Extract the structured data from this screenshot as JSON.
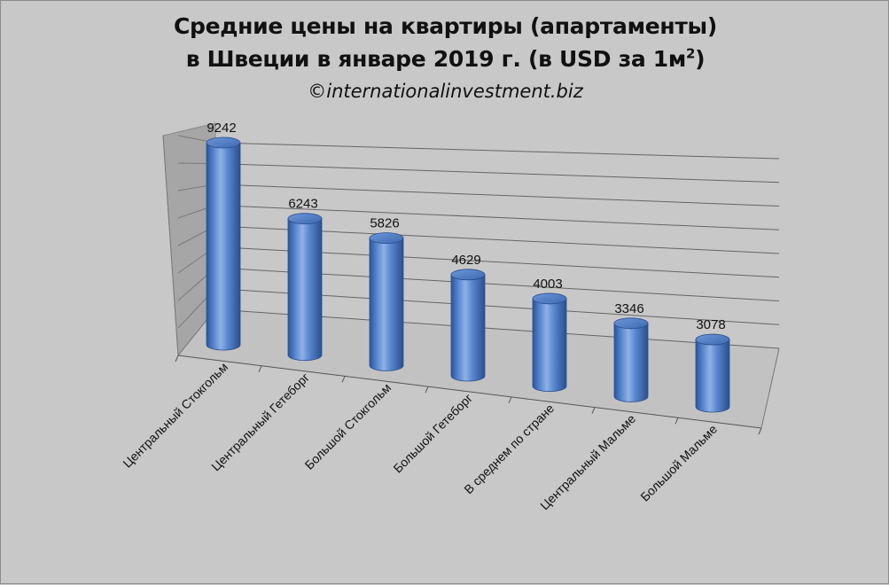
{
  "chart_data": {
    "type": "bar",
    "title_line1": "Средние цены на квартиры (апартаменты)",
    "title_line2_main": "в Швеции в январе 2019 г. (в USD за 1м",
    "title_line2_sup": "2",
    "title_line2_end": ")",
    "subtitle": "©internationalinvestment.biz",
    "categories": [
      "Центральный Стокгольм",
      "Центральный Гетеборг",
      "Большой Стокгольм",
      "Большой Гетеборг",
      "В среднем по стране",
      "Центральный Мальме",
      "Большой Мальме"
    ],
    "values": [
      9242,
      6243,
      5826,
      4629,
      4003,
      3346,
      3078
    ],
    "ylim": [
      0,
      9000
    ],
    "grid": true,
    "legend": "none",
    "colors": {
      "bar": "#4a7ac2",
      "bar_dark": "#2e5aa0",
      "bar_light": "#8fb2e6",
      "background": "#c8c8c8",
      "back_wall": "#c8c8c8",
      "side_wall": "#a0a0a0",
      "grid": "#6e6e6e"
    }
  }
}
